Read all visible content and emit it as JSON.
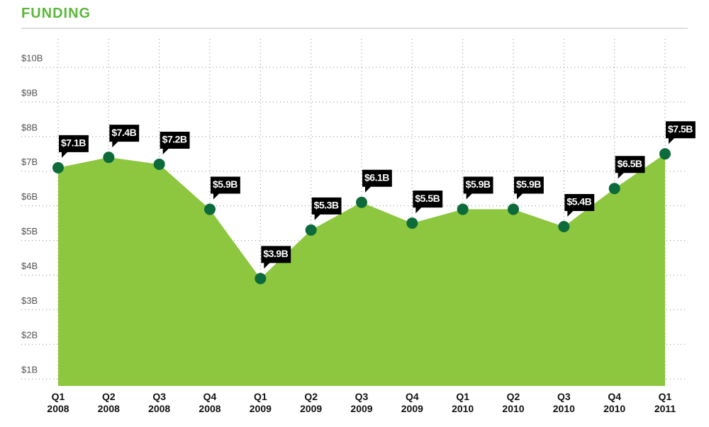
{
  "chart_data": {
    "type": "area",
    "title": "FUNDING",
    "categories": [
      "Q1 2008",
      "Q2 2008",
      "Q3 2008",
      "Q4 2008",
      "Q1 2009",
      "Q2 2009",
      "Q3 2009",
      "Q4 2009",
      "Q1 2010",
      "Q2 2010",
      "Q3 2010",
      "Q4 2010",
      "Q1 2011"
    ],
    "values": [
      7.1,
      7.4,
      7.2,
      5.9,
      3.9,
      5.3,
      6.1,
      5.5,
      5.9,
      5.9,
      5.4,
      6.5,
      7.5
    ],
    "value_labels": [
      "$7.1B",
      "$7.4B",
      "$7.2B",
      "$5.9B",
      "$3.9B",
      "$5.3B",
      "$6.1B",
      "$5.5B",
      "$5.9B",
      "$5.9B",
      "$5.4B",
      "$6.5B",
      "$7.5B"
    ],
    "color": "#8dc63f",
    "marker_color": "#0d6b3b",
    "ylim": [
      0.8,
      10
    ],
    "yticks": [
      {
        "value": 1,
        "label": "$1B"
      },
      {
        "value": 2,
        "label": "$2B"
      },
      {
        "value": 3,
        "label": "$3B"
      },
      {
        "value": 4,
        "label": "$4B"
      },
      {
        "value": 5,
        "label": "$5B"
      },
      {
        "value": 6,
        "label": "$6B"
      },
      {
        "value": 7,
        "label": "$7B"
      },
      {
        "value": 8,
        "label": "$8B"
      },
      {
        "value": 9,
        "label": "$9B"
      },
      {
        "value": 10,
        "label": "$10B"
      }
    ],
    "grid": true
  }
}
